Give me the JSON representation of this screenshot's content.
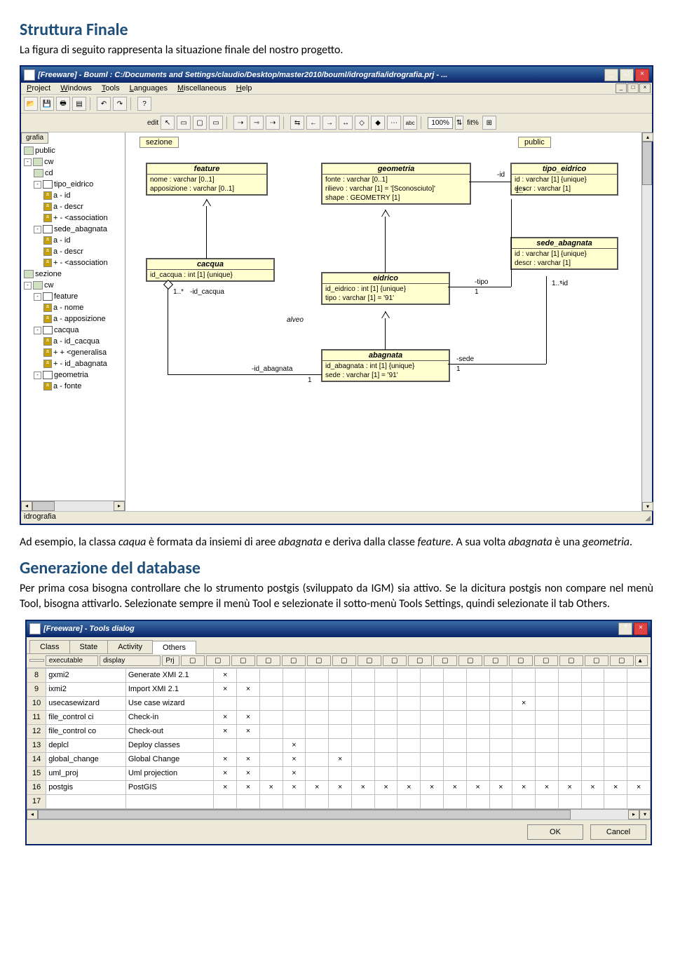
{
  "headings": {
    "h1": "Struttura Finale",
    "h2": "Generazione del database"
  },
  "para": {
    "p1": "La figura di seguito rappresenta la situazione finale del nostro progetto.",
    "p2a": "Ad esempio, la classa ",
    "p2b": " è formata da insiemi di aree ",
    "p2c": " e deriva dalla classe ",
    "p2d": ". A sua volta ",
    "p2e": " è una ",
    "p2f": ".",
    "p3": "Per prima cosa bisogna controllare che lo strumento postgis (sviluppato da IGM) sia attivo. Se la dicitura postgis non compare nel menù Tool, bisogna attivarlo. Selezionate sempre il menù Tool e selezionate il sotto-menù Tools Settings, quindi selezionate il tab Others.",
    "em": {
      "caqua": "caqua",
      "abagnata": "abagnata",
      "feature": "feature",
      "geometria": "geometria"
    }
  },
  "win1": {
    "title": "[Freeware] - Bouml : C:/Documents and Settings/claudio/Desktop/master2010/bouml/idrografia/idrografia.prj - ...",
    "menu": [
      "Project",
      "Windows",
      "Tools",
      "Languages",
      "Miscellaneous",
      "Help"
    ],
    "toolbar2": {
      "edit": "edit",
      "zoom": "100%",
      "fit": "fit%",
      "abc": "abc"
    },
    "tree": {
      "hdr": "grafia",
      "items": [
        {
          "indent": 0,
          "icon": "pkg",
          "label": "public"
        },
        {
          "indent": 0,
          "tg": "-",
          "icon": "pkg",
          "label": "cw"
        },
        {
          "indent": 1,
          "icon": "pkg",
          "label": "cd"
        },
        {
          "indent": 1,
          "tg": "-",
          "icon": "cls",
          "label": "tipo_eidrico"
        },
        {
          "indent": 2,
          "icon": "attr",
          "label": "a - id"
        },
        {
          "indent": 2,
          "icon": "attr",
          "label": "a - descr"
        },
        {
          "indent": 2,
          "icon": "attr",
          "label": "+ - <association"
        },
        {
          "indent": 1,
          "tg": "-",
          "icon": "cls",
          "label": "sede_abagnata"
        },
        {
          "indent": 2,
          "icon": "attr",
          "label": "a - id"
        },
        {
          "indent": 2,
          "icon": "attr",
          "label": "a - descr"
        },
        {
          "indent": 2,
          "icon": "attr",
          "label": "+ - <association"
        },
        {
          "indent": 0,
          "icon": "pkg",
          "label": "sezione"
        },
        {
          "indent": 0,
          "tg": "-",
          "icon": "pkg",
          "label": "cw"
        },
        {
          "indent": 1,
          "tg": "-",
          "icon": "cls",
          "label": "feature"
        },
        {
          "indent": 2,
          "icon": "attr",
          "label": "a - nome"
        },
        {
          "indent": 2,
          "icon": "attr",
          "label": "a - apposizione"
        },
        {
          "indent": 1,
          "tg": "-",
          "icon": "cls",
          "label": "cacqua"
        },
        {
          "indent": 2,
          "icon": "attr",
          "label": "a - id_cacqua"
        },
        {
          "indent": 2,
          "icon": "attr",
          "label": "+ + <generalisa"
        },
        {
          "indent": 2,
          "icon": "attr",
          "label": "+ - id_abagnata"
        },
        {
          "indent": 1,
          "tg": "-",
          "icon": "cls",
          "label": "geometria"
        },
        {
          "indent": 2,
          "icon": "attr",
          "label": "a - fonte"
        }
      ]
    },
    "canvas": {
      "sezione": "sezione",
      "public": "public",
      "feature": {
        "title": "feature",
        "attrs": [
          "nome : varchar [0..1]",
          "apposizione : varchar [0..1]"
        ]
      },
      "geometria": {
        "title": "geometria",
        "attrs": [
          "fonte : varchar [0..1]",
          "rilievo : varchar [1] = '[Sconosciuto]'",
          "shape : GEOMETRY [1]"
        ]
      },
      "tipo_eidrico": {
        "title": "tipo_eidrico",
        "attrs": [
          "id : varchar [1] {unique}",
          "descr : varchar [1]"
        ]
      },
      "sede_abagnata": {
        "title": "sede_abagnata",
        "attrs": [
          "id : varchar [1] {unique}",
          "descr : varchar [1]"
        ]
      },
      "cacqua": {
        "title": "cacqua",
        "attrs": [
          "id_cacqua : int [1] {unique}"
        ]
      },
      "eidrico": {
        "title": "eidrico",
        "attrs": [
          "id_eidrico : int [1] {unique}",
          "tipo : varchar [1] = '91'"
        ]
      },
      "abagnata": {
        "title": "abagnata",
        "attrs": [
          "id_abagnata : int [1] {unique}",
          "sede : varchar [1] = '91'"
        ]
      },
      "labels": {
        "id": "-id",
        "alveo": "alveo",
        "idcacqua": "-id_cacqua",
        "idabagnata": "-id_abagnata",
        "tipo": "-tipo",
        "sede": "-sede",
        "n1": "1..*",
        "n2": "1",
        "n3": "1..*",
        "n4": "1..*",
        "n5": "1",
        "n6": "1"
      }
    },
    "status": "idrografia"
  },
  "win2": {
    "title": "[Freeware] - Tools dialog",
    "tabs": [
      "Class",
      "State",
      "Activity",
      "Others"
    ],
    "cols": {
      "exe": "executable",
      "disp": "display",
      "prj": "Prj"
    },
    "rows": [
      {
        "n": "8",
        "exe": "gxmi2",
        "disp": "Generate XMI 2.1",
        "x": [
          1,
          0,
          0,
          0,
          0,
          0,
          0,
          0,
          0,
          0,
          0,
          0,
          0,
          0,
          0,
          0,
          0,
          0,
          0
        ]
      },
      {
        "n": "9",
        "exe": "ixmi2",
        "disp": "Import XMI 2.1",
        "x": [
          1,
          1,
          0,
          0,
          0,
          0,
          0,
          0,
          0,
          0,
          0,
          0,
          0,
          0,
          0,
          0,
          0,
          0,
          0
        ]
      },
      {
        "n": "10",
        "exe": "usecasewizard",
        "disp": "Use case wizard",
        "x": [
          0,
          0,
          0,
          0,
          0,
          0,
          0,
          0,
          0,
          0,
          0,
          0,
          0,
          1,
          0,
          0,
          0,
          0,
          0
        ]
      },
      {
        "n": "11",
        "exe": "file_control ci",
        "disp": "Check-in",
        "x": [
          1,
          1,
          0,
          0,
          0,
          0,
          0,
          0,
          0,
          0,
          0,
          0,
          0,
          0,
          0,
          0,
          0,
          0,
          0
        ]
      },
      {
        "n": "12",
        "exe": "file_control co",
        "disp": "Check-out",
        "x": [
          1,
          1,
          0,
          0,
          0,
          0,
          0,
          0,
          0,
          0,
          0,
          0,
          0,
          0,
          0,
          0,
          0,
          0,
          0
        ]
      },
      {
        "n": "13",
        "exe": "deplcl",
        "disp": "Deploy classes",
        "x": [
          0,
          0,
          0,
          1,
          0,
          0,
          0,
          0,
          0,
          0,
          0,
          0,
          0,
          0,
          0,
          0,
          0,
          0,
          0
        ]
      },
      {
        "n": "14",
        "exe": "global_change",
        "disp": "Global Change",
        "x": [
          1,
          1,
          0,
          1,
          0,
          1,
          0,
          0,
          0,
          0,
          0,
          0,
          0,
          0,
          0,
          0,
          0,
          0,
          0
        ]
      },
      {
        "n": "15",
        "exe": "uml_proj",
        "disp": "Uml projection",
        "x": [
          1,
          1,
          0,
          1,
          0,
          0,
          0,
          0,
          0,
          0,
          0,
          0,
          0,
          0,
          0,
          0,
          0,
          0,
          0
        ]
      },
      {
        "n": "16",
        "exe": "postgis",
        "disp": "PostGIS",
        "x": [
          1,
          1,
          1,
          1,
          1,
          1,
          1,
          1,
          1,
          1,
          1,
          1,
          1,
          1,
          1,
          1,
          1,
          1,
          1
        ]
      },
      {
        "n": "17",
        "exe": "",
        "disp": "",
        "x": [
          0,
          0,
          0,
          0,
          0,
          0,
          0,
          0,
          0,
          0,
          0,
          0,
          0,
          0,
          0,
          0,
          0,
          0,
          0
        ]
      }
    ],
    "buttons": {
      "ok": "OK",
      "cancel": "Cancel"
    }
  }
}
